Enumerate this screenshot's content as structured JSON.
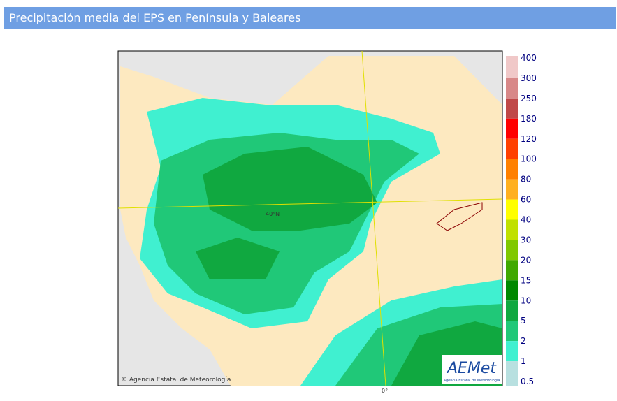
{
  "header": {
    "title": "Precipitación media del EPS en Península y Baleares"
  },
  "map": {
    "latitude_label": "40°N",
    "longitude_label": "0°",
    "credit": "© Agencia Estatal de Meteorología",
    "logo": {
      "name": "AEMet",
      "subtitle": "Agencia Estatal de Meteorología"
    }
  },
  "legend": {
    "values": [
      400,
      300,
      250,
      180,
      120,
      100,
      80,
      60,
      40,
      30,
      20,
      15,
      10,
      5,
      2,
      1,
      0.5
    ],
    "colors": [
      "#f0c8c8",
      "#d88888",
      "#c04848",
      "#ff0000",
      "#ff4000",
      "#ff8000",
      "#ffb020",
      "#ffff00",
      "#c0e000",
      "#80c800",
      "#40a800",
      "#008800",
      "#10a840",
      "#20c878",
      "#40f0d0",
      "#b8e0e0"
    ]
  }
}
